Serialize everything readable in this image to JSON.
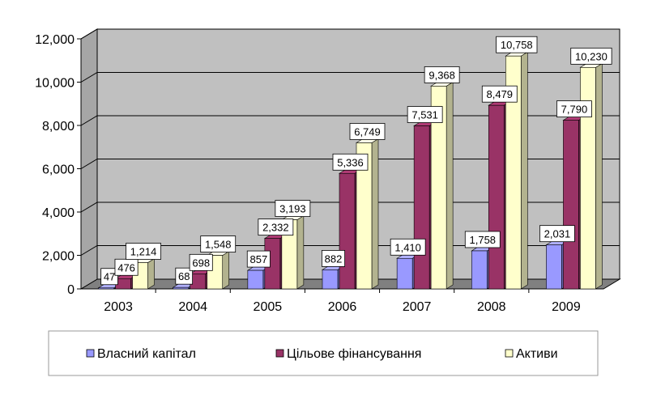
{
  "chart_data": {
    "type": "bar",
    "categories": [
      "2003",
      "2004",
      "2005",
      "2006",
      "2007",
      "2008",
      "2009"
    ],
    "series": [
      {
        "name": "Власний капітал",
        "values": [
          47,
          68,
          857,
          882,
          1410,
          1758,
          2031
        ],
        "labels": [
          "47",
          "68",
          "857",
          "882",
          "1,410",
          "1,758",
          "2,031"
        ],
        "color": "#9999FF"
      },
      {
        "name": "Цільове фінансування",
        "values": [
          476,
          698,
          2332,
          5336,
          7531,
          8479,
          7790
        ],
        "labels": [
          "476",
          "698",
          "2,332",
          "5,336",
          "7,531",
          "8,479",
          "7,790"
        ],
        "color": "#993366"
      },
      {
        "name": "Активи",
        "values": [
          1214,
          1548,
          3193,
          6749,
          9368,
          10758,
          10230
        ],
        "labels": [
          "1,214",
          "1,548",
          "3,193",
          "6,749",
          "9,368",
          "10,758",
          "10,230"
        ],
        "color": "#FFFFCC"
      }
    ],
    "ylim": [
      0,
      12000
    ],
    "yticks": [
      0,
      2000,
      4000,
      6000,
      8000,
      10000,
      12000
    ],
    "ytick_labels": [
      "0",
      "2,000",
      "4,000",
      "6,000",
      "8,000",
      "10,000",
      "12,000"
    ],
    "grid": true,
    "legend_position": "bottom",
    "style": "3d-clustered-column",
    "wall_color": "#C0C0C0"
  }
}
